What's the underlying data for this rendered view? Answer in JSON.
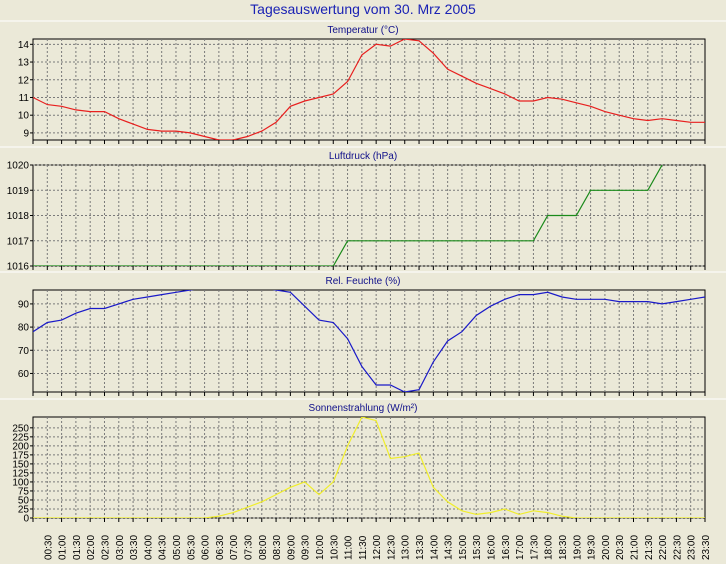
{
  "title": "Tagesauswertung vom 30. Mrz 2005",
  "chart_data": [
    {
      "type": "line",
      "title": "Temperatur (°C)",
      "color": "#e8201f",
      "ylim": [
        8.6,
        14.3
      ],
      "yticks": [
        9,
        10,
        11,
        12,
        13,
        14
      ],
      "grid": true,
      "x": [
        0,
        0.5,
        1,
        1.5,
        2,
        2.5,
        3,
        3.5,
        4,
        4.5,
        5,
        5.5,
        6,
        6.5,
        7,
        7.5,
        8,
        8.5,
        9,
        9.5,
        10,
        10.5,
        11,
        11.5,
        12,
        12.5,
        13,
        13.5,
        14,
        14.5,
        15,
        15.5,
        16,
        16.5,
        17,
        17.5,
        18,
        18.5,
        19,
        19.5,
        20,
        20.5,
        21,
        21.5,
        22,
        22.5,
        23,
        23.5
      ],
      "values": [
        11.0,
        10.6,
        10.5,
        10.3,
        10.2,
        10.2,
        9.8,
        9.5,
        9.2,
        9.1,
        9.1,
        9.0,
        8.8,
        8.6,
        8.6,
        8.8,
        9.1,
        9.6,
        10.5,
        10.8,
        11.0,
        11.2,
        11.9,
        13.4,
        14.0,
        13.9,
        14.3,
        14.2,
        13.5,
        12.6,
        12.2,
        11.8,
        11.5,
        11.2,
        10.8,
        10.8,
        11.0,
        10.9,
        10.7,
        10.5,
        10.2,
        10.0,
        9.8,
        9.7,
        9.8,
        9.7,
        9.6,
        9.6
      ]
    },
    {
      "type": "line",
      "title": "Luftdruck (hPa)",
      "color": "#1a8a1a",
      "ylim": [
        1016,
        1020
      ],
      "yticks": [
        1016,
        1017,
        1018,
        1019,
        1020
      ],
      "grid": true,
      "x": [
        0,
        10.5,
        11,
        17.5,
        18,
        19,
        19.5,
        21.5,
        22
      ],
      "values": [
        1016,
        1016,
        1017,
        1017,
        1018,
        1018,
        1019,
        1019,
        1020
      ]
    },
    {
      "type": "line",
      "title": "Rel. Feuchte (%)",
      "color": "#1a1ac8",
      "ylim": [
        52,
        96
      ],
      "yticks": [
        60,
        70,
        80,
        90
      ],
      "grid": true,
      "x": [
        0,
        0.5,
        1,
        1.5,
        2,
        2.5,
        3,
        3.5,
        4,
        4.5,
        5,
        5.5,
        6,
        6.5,
        7,
        7.5,
        8,
        8.5,
        9,
        9.5,
        10,
        10.5,
        11,
        11.5,
        12,
        12.5,
        13,
        13.5,
        14,
        14.5,
        15,
        15.5,
        16,
        16.5,
        17,
        17.5,
        18,
        18.5,
        19,
        19.5,
        20,
        20.5,
        21,
        21.5,
        22,
        22.5,
        23,
        23.5
      ],
      "values": [
        78,
        82,
        83,
        86,
        88,
        88,
        90,
        92,
        93,
        94,
        95,
        96,
        97,
        97,
        97,
        97,
        97,
        96,
        95,
        89,
        83,
        82,
        75,
        63,
        55,
        55,
        52,
        53,
        65,
        74,
        78,
        85,
        89,
        92,
        94,
        94,
        95,
        93,
        92,
        92,
        92,
        91,
        91,
        91,
        90,
        91,
        92,
        93
      ]
    },
    {
      "type": "line",
      "title": "Sonnenstrahlung (W/m²)",
      "color": "#f0ee2a",
      "ylim": [
        0,
        280
      ],
      "yticks": [
        0,
        25,
        50,
        75,
        100,
        125,
        150,
        175,
        200,
        225,
        250
      ],
      "grid": true,
      "x": [
        0,
        6,
        6.5,
        7,
        7.5,
        8,
        8.5,
        9,
        9.5,
        10,
        10.5,
        11,
        11.5,
        12,
        12.5,
        13,
        13.5,
        14,
        14.5,
        15,
        15.5,
        16,
        16.5,
        17,
        17.5,
        18,
        18.5,
        19,
        23.5
      ],
      "values": [
        0,
        0,
        5,
        15,
        30,
        45,
        65,
        85,
        100,
        65,
        100,
        200,
        280,
        270,
        165,
        170,
        180,
        85,
        45,
        20,
        10,
        15,
        25,
        10,
        20,
        15,
        5,
        0,
        0
      ]
    }
  ],
  "x_axis": {
    "labels": [
      "00:30",
      "01:00",
      "01:30",
      "02:00",
      "02:30",
      "03:00",
      "03:30",
      "04:00",
      "04:30",
      "05:00",
      "05:30",
      "06:00",
      "06:30",
      "07:00",
      "07:30",
      "08:00",
      "08:30",
      "09:00",
      "09:30",
      "10:00",
      "10:30",
      "11:00",
      "11:30",
      "12:00",
      "12:30",
      "13:00",
      "13:30",
      "14:00",
      "14:30",
      "15:00",
      "15:30",
      "16:00",
      "16:30",
      "17:00",
      "17:30",
      "18:00",
      "18:30",
      "19:00",
      "19:30",
      "20:00",
      "20:30",
      "21:00",
      "21:30",
      "22:00",
      "22:30",
      "23:00",
      "23:30"
    ]
  }
}
